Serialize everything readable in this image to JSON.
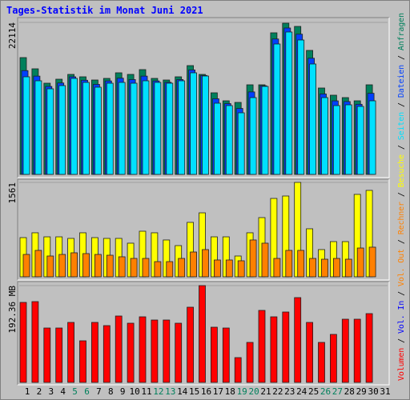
{
  "chart_data": [
    {
      "type": "bar",
      "title": "Tages-Statistik im Monat Juni 2021",
      "ylim": [
        0,
        22114
      ],
      "yticks": [
        22114
      ],
      "series": [
        {
          "name": "Anfragen",
          "color": "#00805c",
          "values": [
            16995,
            15363,
            13268,
            13850,
            14549,
            14200,
            13734,
            13967,
            14782,
            14549,
            15247,
            13967,
            13734,
            14200,
            15829,
            14549,
            11872,
            10708,
            10475,
            13036,
            13036,
            20601,
            21998,
            21532,
            18040,
            12570,
            11523,
            11173,
            10708,
            13036,
            null
          ]
        },
        {
          "name": "Dateien",
          "color": "#0040ff",
          "values": [
            15100,
            14300,
            12800,
            13300,
            14200,
            13700,
            13100,
            13600,
            14000,
            13800,
            14300,
            13600,
            13400,
            13800,
            15200,
            14400,
            11000,
            10300,
            9600,
            12000,
            12900,
            19700,
            21300,
            20400,
            16900,
            11700,
            10700,
            10600,
            10200,
            11800,
            null
          ]
        },
        {
          "name": "Seiten",
          "color": "#00e0ff",
          "values": [
            14200,
            13618,
            12454,
            12919,
            13967,
            13385,
            12687,
            13268,
            13385,
            13268,
            13618,
            13385,
            13268,
            13618,
            14782,
            14316,
            10359,
            10010,
            8962,
            11173,
            12803,
            18972,
            20718,
            19554,
            16062,
            11173,
            10010,
            10126,
            9893,
            10708,
            null
          ]
        }
      ]
    },
    {
      "type": "bar",
      "ylim": [
        0,
        1561
      ],
      "yticks": [
        1561
      ],
      "series": [
        {
          "name": "Besuche",
          "color": "#ffff00",
          "values": [
            648,
            728,
            661,
            661,
            635,
            728,
            648,
            635,
            635,
            556,
            754,
            728,
            609,
            516,
            900,
            1058,
            661,
            661,
            344,
            728,
            979,
            1296,
            1336,
            1561,
            794,
            450,
            582,
            582,
            1363,
            1429,
            null
          ]
        },
        {
          "name": "Rechner",
          "color": "#ff8000",
          "values": [
            370,
            437,
            344,
            370,
            397,
            384,
            370,
            357,
            331,
            304,
            304,
            251,
            251,
            304,
            410,
            450,
            278,
            278,
            265,
            609,
            556,
            304,
            437,
            437,
            304,
            291,
            304,
            291,
            476,
            490,
            null
          ]
        }
      ]
    },
    {
      "type": "bar",
      "ylim": [
        0,
        192.36
      ],
      "yticks": [
        {
          "value": 192.36,
          "label": "192.36 MB"
        }
      ],
      "categories": [
        "1",
        "2",
        "3",
        "4",
        "5",
        "6",
        "7",
        "8",
        "9",
        "10",
        "11",
        "12",
        "13",
        "14",
        "15",
        "16",
        "17",
        "18",
        "19",
        "20",
        "21",
        "22",
        "23",
        "24",
        "25",
        "26",
        "27",
        "28",
        "29",
        "30",
        "31"
      ],
      "weekend_days": [
        "5",
        "6",
        "12",
        "13",
        "19",
        "20",
        "26",
        "27"
      ],
      "weekend_color": "#00805c",
      "series": [
        {
          "name": "Volumen",
          "color": "#ff0000",
          "values": [
            158.98,
            160.57,
            108.1,
            108.1,
            119.23,
            82.67,
            119.23,
            112.87,
            131.95,
            117.64,
            130.36,
            124.0,
            124.0,
            117.64,
            149.44,
            192.36,
            109.69,
            108.1,
            49.28,
            79.49,
            143.08,
            130.36,
            139.9,
            168.51,
            119.23,
            79.49,
            95.39,
            125.59,
            125.59,
            136.72,
            null
          ]
        }
      ],
      "legend_only": [
        {
          "name": "Vol. In",
          "color": "#0000ff"
        },
        {
          "name": "Vol. Out",
          "color": "#ff8000"
        }
      ]
    }
  ],
  "legend_separator": "/"
}
